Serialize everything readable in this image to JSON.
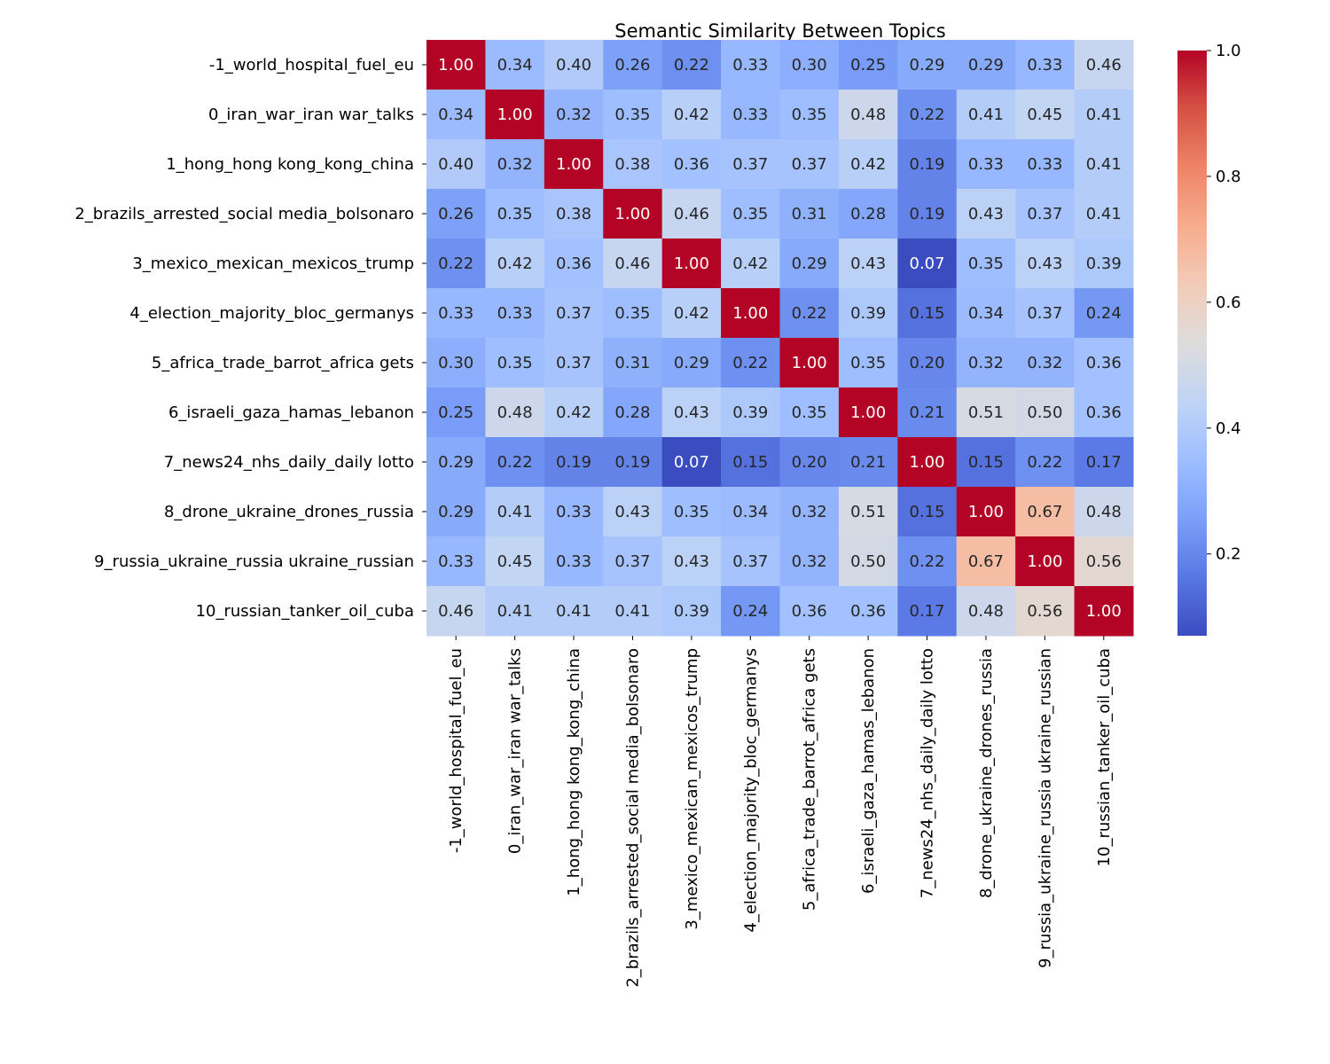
{
  "chart_data": {
    "type": "heatmap",
    "title": "Semantic Similarity Between Topics",
    "labels": [
      "-1_world_hospital_fuel_eu",
      "0_iran_war_iran war_talks",
      "1_hong_hong kong_kong_china",
      "2_brazils_arrested_social media_bolsonaro",
      "3_mexico_mexican_mexicos_trump",
      "4_election_majority_bloc_germanys",
      "5_africa_trade_barrot_africa gets",
      "6_israeli_gaza_hamas_lebanon",
      "7_news24_nhs_daily_daily lotto",
      "8_drone_ukraine_drones_russia",
      "9_russia_ukraine_russia ukraine_russian",
      "10_russian_tanker_oil_cuba"
    ],
    "values": [
      [
        1.0,
        0.34,
        0.4,
        0.26,
        0.22,
        0.33,
        0.3,
        0.25,
        0.29,
        0.29,
        0.33,
        0.46
      ],
      [
        0.34,
        1.0,
        0.32,
        0.35,
        0.42,
        0.33,
        0.35,
        0.48,
        0.22,
        0.41,
        0.45,
        0.41
      ],
      [
        0.4,
        0.32,
        1.0,
        0.38,
        0.36,
        0.37,
        0.37,
        0.42,
        0.19,
        0.33,
        0.33,
        0.41
      ],
      [
        0.26,
        0.35,
        0.38,
        1.0,
        0.46,
        0.35,
        0.31,
        0.28,
        0.19,
        0.43,
        0.37,
        0.41
      ],
      [
        0.22,
        0.42,
        0.36,
        0.46,
        1.0,
        0.42,
        0.29,
        0.43,
        0.07,
        0.35,
        0.43,
        0.39
      ],
      [
        0.33,
        0.33,
        0.37,
        0.35,
        0.42,
        1.0,
        0.22,
        0.39,
        0.15,
        0.34,
        0.37,
        0.24
      ],
      [
        0.3,
        0.35,
        0.37,
        0.31,
        0.29,
        0.22,
        1.0,
        0.35,
        0.2,
        0.32,
        0.32,
        0.36
      ],
      [
        0.25,
        0.48,
        0.42,
        0.28,
        0.43,
        0.39,
        0.35,
        1.0,
        0.21,
        0.51,
        0.5,
        0.36
      ],
      [
        0.29,
        0.22,
        0.19,
        0.19,
        0.07,
        0.15,
        0.2,
        0.21,
        1.0,
        0.15,
        0.22,
        0.17
      ],
      [
        0.29,
        0.41,
        0.33,
        0.43,
        0.35,
        0.34,
        0.32,
        0.51,
        0.15,
        1.0,
        0.67,
        0.48
      ],
      [
        0.33,
        0.45,
        0.33,
        0.37,
        0.43,
        0.37,
        0.32,
        0.5,
        0.22,
        0.67,
        1.0,
        0.56
      ],
      [
        0.46,
        0.41,
        0.41,
        0.41,
        0.39,
        0.24,
        0.36,
        0.36,
        0.17,
        0.48,
        0.56,
        1.0
      ]
    ],
    "colormap": "coolwarm",
    "vmin": 0.07,
    "vmax": 1.0,
    "colorbar_ticks": [
      "0.2",
      "0.4",
      "0.6",
      "0.8",
      "1.0"
    ],
    "annotated": true
  }
}
